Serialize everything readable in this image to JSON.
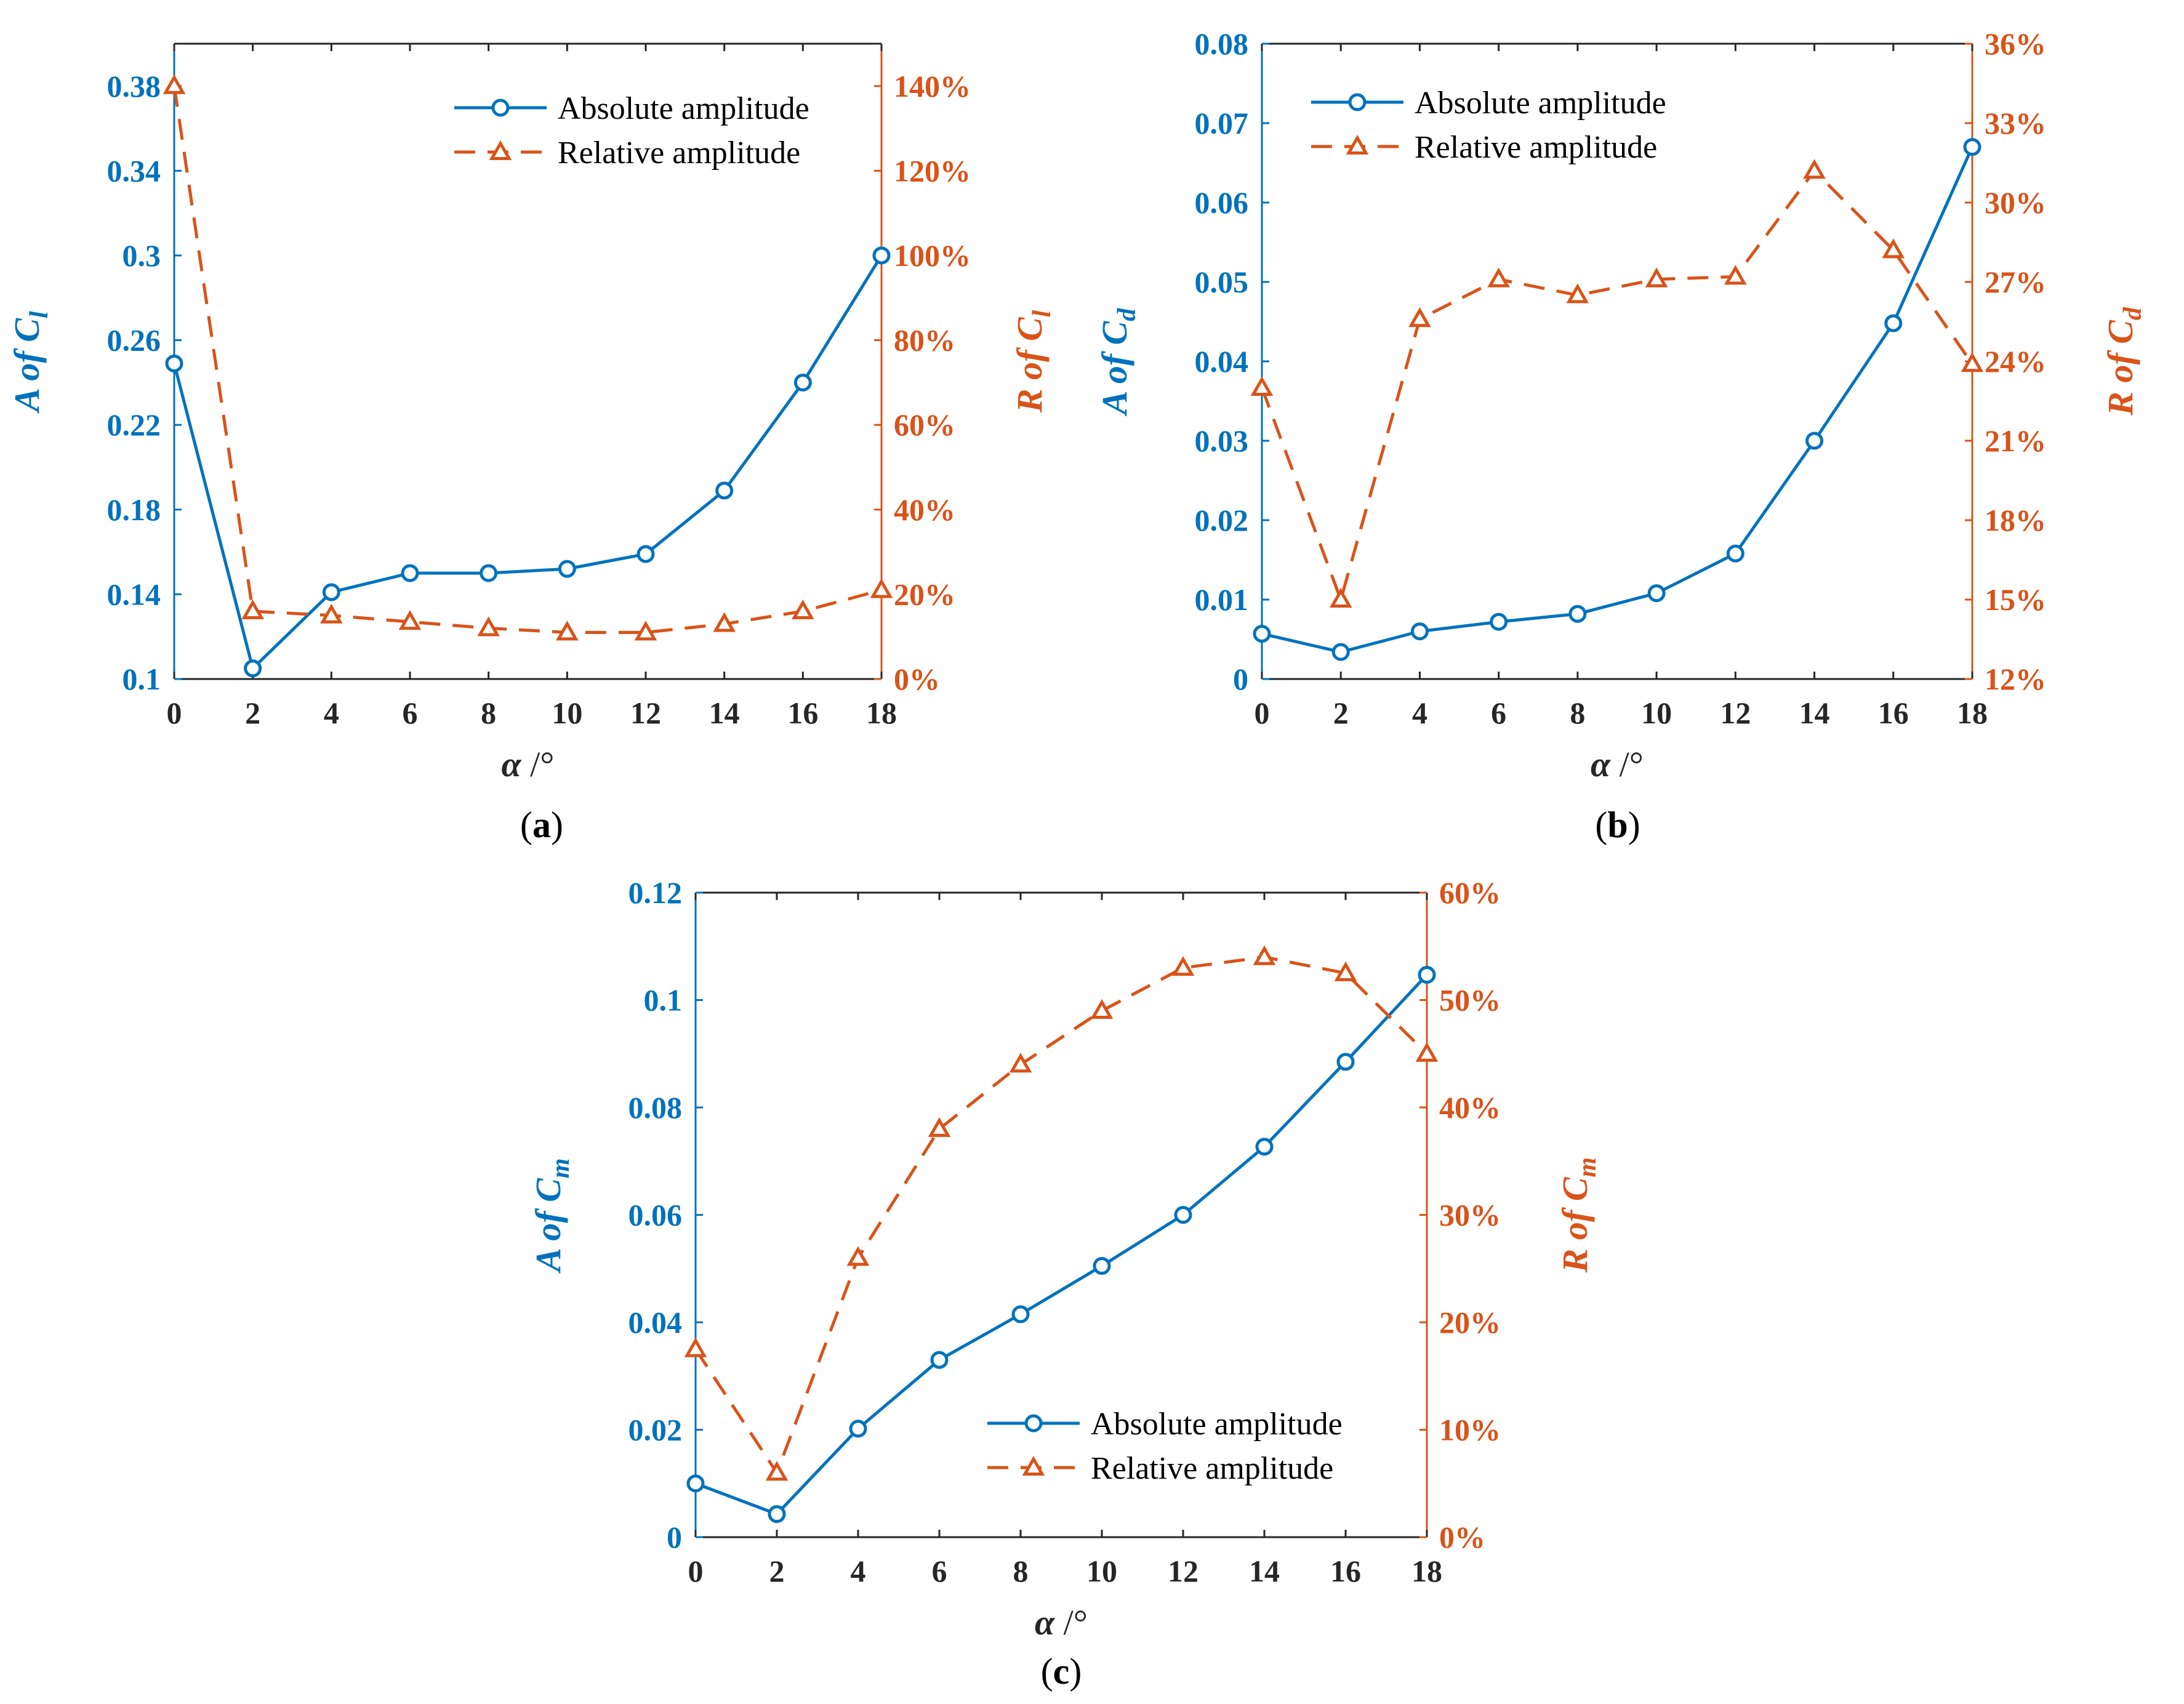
{
  "colors": {
    "absolute": "#0072BD",
    "relative": "#D95319",
    "axis": "#262626"
  },
  "chart_data": [
    {
      "type": "line",
      "panel_label": "(a)",
      "panel_letter": "a",
      "x": [
        0,
        2,
        4,
        6,
        8,
        10,
        12,
        14,
        16,
        18
      ],
      "x_ticks": [
        "0",
        "2",
        "4",
        "6",
        "8",
        "10",
        "12",
        "14",
        "16",
        "18"
      ],
      "xlim": [
        0,
        18
      ],
      "xlabel": "α /°",
      "xlabel_symbol": "α",
      "xlabel_unit": " /°",
      "ylabel_left": "A of C_l",
      "ylabel_left_main": "A of C",
      "ylabel_left_sub": "l",
      "ylim_left": [
        0.1,
        0.4
      ],
      "yticks_left": [
        "0.1",
        "0.14",
        "0.18",
        "0.22",
        "0.26",
        "0.3",
        "0.34",
        "0.38"
      ],
      "yticks_left_values": [
        0.1,
        0.14,
        0.18,
        0.22,
        0.26,
        0.3,
        0.34,
        0.38
      ],
      "ylabel_right": "R of C_l",
      "ylabel_right_main": "R of C",
      "ylabel_right_sub": "l",
      "ylim_right": [
        0,
        150
      ],
      "yticks_right": [
        "0%",
        "20%",
        "40%",
        "60%",
        "80%",
        "100%",
        "120%",
        "140%"
      ],
      "yticks_right_values": [
        0,
        20,
        40,
        60,
        80,
        100,
        120,
        140
      ],
      "legend_position": "top-right",
      "series": [
        {
          "name": "Absolute amplitude",
          "axis": "left",
          "marker": "circle",
          "style": "solid",
          "values": [
            0.249,
            0.105,
            0.141,
            0.15,
            0.15,
            0.152,
            0.159,
            0.189,
            0.24,
            0.3
          ]
        },
        {
          "name": "Relative amplitude",
          "axis": "right",
          "marker": "triangle",
          "style": "dashed",
          "values": [
            140,
            16,
            15,
            13.5,
            12,
            11,
            11,
            13,
            16,
            21
          ]
        }
      ]
    },
    {
      "type": "line",
      "panel_label": "(b)",
      "panel_letter": "b",
      "x": [
        0,
        2,
        4,
        6,
        8,
        10,
        12,
        14,
        16,
        18
      ],
      "x_ticks": [
        "0",
        "2",
        "4",
        "6",
        "8",
        "10",
        "12",
        "14",
        "16",
        "18"
      ],
      "xlim": [
        0,
        18
      ],
      "xlabel": "α /°",
      "xlabel_symbol": "α",
      "xlabel_unit": " /°",
      "ylabel_left": "A of C_d",
      "ylabel_left_main": "A of C",
      "ylabel_left_sub": "d",
      "ylim_left": [
        0,
        0.08
      ],
      "yticks_left": [
        "0",
        "0.01",
        "0.02",
        "0.03",
        "0.04",
        "0.05",
        "0.06",
        "0.07",
        "0.08"
      ],
      "yticks_left_values": [
        0,
        0.01,
        0.02,
        0.03,
        0.04,
        0.05,
        0.06,
        0.07,
        0.08
      ],
      "ylabel_right": "R of C_d",
      "ylabel_right_main": "R of C",
      "ylabel_right_sub": "d",
      "ylim_right": [
        12,
        36
      ],
      "yticks_right": [
        "12%",
        "15%",
        "18%",
        "21%",
        "24%",
        "27%",
        "30%",
        "33%",
        "36%"
      ],
      "yticks_right_values": [
        12,
        15,
        18,
        21,
        24,
        27,
        30,
        33,
        36
      ],
      "legend_position": "top-left",
      "series": [
        {
          "name": "Absolute amplitude",
          "axis": "left",
          "marker": "circle",
          "style": "solid",
          "values": [
            0.0057,
            0.0034,
            0.006,
            0.0072,
            0.0082,
            0.0108,
            0.0158,
            0.03,
            0.0448,
            0.067
          ]
        },
        {
          "name": "Relative amplitude",
          "axis": "right",
          "marker": "triangle",
          "style": "dashed",
          "values": [
            23.0,
            15.0,
            25.6,
            27.1,
            26.5,
            27.1,
            27.2,
            31.2,
            28.2,
            23.9
          ]
        }
      ]
    },
    {
      "type": "line",
      "panel_label": "(c)",
      "panel_letter": "c",
      "x": [
        0,
        2,
        4,
        6,
        8,
        10,
        12,
        14,
        16,
        18
      ],
      "x_ticks": [
        "0",
        "2",
        "4",
        "6",
        "8",
        "10",
        "12",
        "14",
        "16",
        "18"
      ],
      "xlim": [
        0,
        18
      ],
      "xlabel": "α /°",
      "xlabel_symbol": "α",
      "xlabel_unit": " /°",
      "ylabel_left": "A of C_m",
      "ylabel_left_main": "A of C",
      "ylabel_left_sub": "m",
      "ylim_left": [
        0,
        0.12
      ],
      "yticks_left": [
        "0",
        "0.02",
        "0.04",
        "0.06",
        "0.08",
        "0.1",
        "0.12"
      ],
      "yticks_left_values": [
        0,
        0.02,
        0.04,
        0.06,
        0.08,
        0.1,
        0.12
      ],
      "ylabel_right": "R of C_m",
      "ylabel_right_main": "R of C",
      "ylabel_right_sub": "m",
      "ylim_right": [
        0,
        60
      ],
      "yticks_right": [
        "0%",
        "10%",
        "20%",
        "30%",
        "40%",
        "50%",
        "60%"
      ],
      "yticks_right_values": [
        0,
        10,
        20,
        30,
        40,
        50,
        60
      ],
      "legend_position": "bottom-right",
      "series": [
        {
          "name": "Absolute amplitude",
          "axis": "left",
          "marker": "circle",
          "style": "solid",
          "values": [
            0.01,
            0.0043,
            0.0202,
            0.033,
            0.0415,
            0.0505,
            0.06,
            0.0727,
            0.0885,
            0.1047
          ]
        },
        {
          "name": "Relative amplitude",
          "axis": "right",
          "marker": "triangle",
          "style": "dashed",
          "values": [
            17.5,
            6.0,
            26.0,
            38.0,
            44.0,
            49.0,
            53.0,
            54.0,
            52.5,
            45.0
          ]
        }
      ]
    }
  ]
}
